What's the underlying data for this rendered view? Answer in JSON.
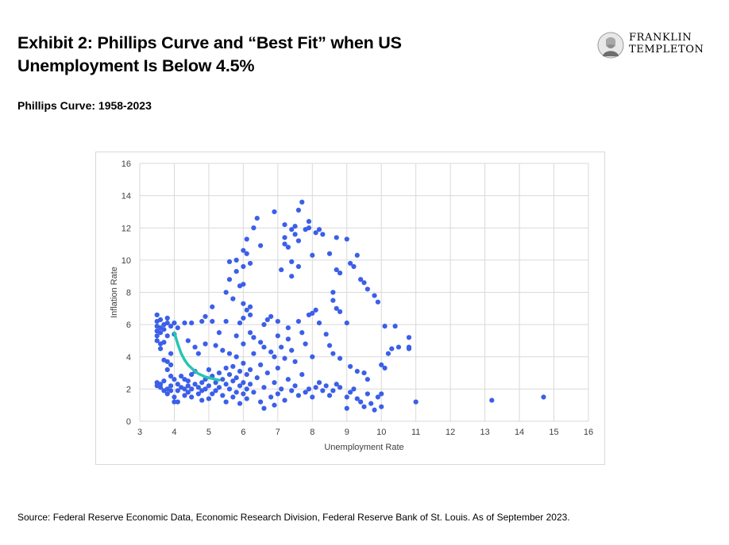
{
  "header": {
    "title": "Exhibit 2: Phillips Curve and “Best Fit” when US Unemployment Is Below 4.5%",
    "subtitle": "Phillips Curve: 1958-2023"
  },
  "logo": {
    "line1": "FRANKLIN",
    "line2": "TEMPLETON",
    "icon": "franklin-portrait-icon"
  },
  "footer": {
    "source": "Source: Federal Reserve Economic Data, Economic Research Division, Federal Reserve Bank of St. Louis. As of September 2023."
  },
  "colors": {
    "points": "#3b5fe8",
    "fit": "#26c6b0",
    "grid": "#d9d9d9"
  },
  "chart_data": {
    "type": "scatter",
    "xlabel": "Unemployment Rate",
    "ylabel": "Inflation Rate",
    "xlim": [
      3,
      16
    ],
    "ylim": [
      0,
      16
    ],
    "xticks": [
      3,
      4,
      5,
      6,
      7,
      8,
      9,
      10,
      11,
      12,
      13,
      14,
      15,
      16
    ],
    "yticks": [
      0,
      2,
      4,
      6,
      8,
      10,
      12,
      14,
      16
    ],
    "grid": true,
    "series": [
      {
        "points": [
          [
            3.5,
            6.6
          ],
          [
            3.5,
            6.2
          ],
          [
            3.5,
            5.9
          ],
          [
            3.5,
            5.6
          ],
          [
            3.5,
            5.3
          ],
          [
            3.5,
            5.0
          ],
          [
            3.6,
            6.3
          ],
          [
            3.6,
            5.8
          ],
          [
            3.6,
            5.5
          ],
          [
            3.6,
            4.8
          ],
          [
            3.6,
            4.5
          ],
          [
            3.7,
            6.0
          ],
          [
            3.7,
            5.7
          ],
          [
            3.7,
            4.9
          ],
          [
            3.8,
            6.4
          ],
          [
            3.8,
            6.1
          ],
          [
            3.8,
            5.3
          ],
          [
            3.9,
            5.9
          ],
          [
            3.9,
            4.2
          ],
          [
            4.0,
            5.4
          ],
          [
            4.0,
            6.1
          ],
          [
            4.1,
            5.8
          ],
          [
            4.3,
            6.1
          ],
          [
            4.4,
            5.0
          ],
          [
            4.5,
            6.1
          ],
          [
            4.8,
            6.2
          ],
          [
            4.9,
            6.5
          ],
          [
            5.1,
            7.1
          ],
          [
            5.1,
            6.2
          ],
          [
            3.5,
            2.4
          ],
          [
            3.5,
            2.2
          ],
          [
            3.6,
            2.1
          ],
          [
            3.6,
            2.3
          ],
          [
            3.7,
            1.9
          ],
          [
            3.7,
            2.5
          ],
          [
            3.7,
            3.8
          ],
          [
            3.8,
            3.7
          ],
          [
            3.8,
            3.2
          ],
          [
            3.8,
            2.0
          ],
          [
            3.8,
            1.7
          ],
          [
            3.9,
            3.5
          ],
          [
            3.9,
            2.8
          ],
          [
            3.9,
            2.2
          ],
          [
            3.9,
            1.9
          ],
          [
            4.0,
            1.5
          ],
          [
            4.0,
            2.6
          ],
          [
            4.0,
            1.2
          ],
          [
            4.1,
            2.3
          ],
          [
            4.1,
            1.9
          ],
          [
            4.1,
            1.2
          ],
          [
            4.2,
            2.1
          ],
          [
            4.2,
            2.8
          ],
          [
            4.3,
            2.6
          ],
          [
            4.3,
            2.0
          ],
          [
            4.3,
            1.6
          ],
          [
            4.4,
            2.5
          ],
          [
            4.4,
            2.2
          ],
          [
            4.4,
            1.8
          ],
          [
            4.5,
            2.0
          ],
          [
            4.5,
            1.5
          ],
          [
            4.5,
            2.9
          ],
          [
            4.6,
            3.1
          ],
          [
            4.6,
            2.3
          ],
          [
            4.6,
            4.6
          ],
          [
            4.7,
            2.1
          ],
          [
            4.7,
            1.7
          ],
          [
            4.7,
            4.2
          ],
          [
            4.8,
            2.4
          ],
          [
            4.8,
            1.9
          ],
          [
            4.8,
            1.3
          ],
          [
            4.9,
            2.6
          ],
          [
            4.9,
            2.0
          ],
          [
            4.9,
            4.8
          ],
          [
            5.0,
            2.2
          ],
          [
            5.0,
            1.4
          ],
          [
            5.0,
            3.2
          ],
          [
            5.1,
            2.8
          ],
          [
            5.1,
            1.7
          ],
          [
            5.2,
            2.4
          ],
          [
            5.2,
            1.9
          ],
          [
            5.2,
            4.7
          ],
          [
            5.3,
            2.1
          ],
          [
            5.3,
            3.0
          ],
          [
            5.3,
            5.5
          ],
          [
            5.4,
            2.6
          ],
          [
            5.4,
            1.6
          ],
          [
            5.4,
            4.4
          ],
          [
            5.5,
            2.3
          ],
          [
            5.5,
            3.3
          ],
          [
            5.5,
            1.2
          ],
          [
            5.5,
            6.2
          ],
          [
            5.6,
            2.9
          ],
          [
            5.6,
            2.0
          ],
          [
            5.6,
            4.2
          ],
          [
            5.7,
            2.5
          ],
          [
            5.7,
            1.5
          ],
          [
            5.7,
            3.4
          ],
          [
            5.8,
            2.7
          ],
          [
            5.8,
            1.8
          ],
          [
            5.8,
            4.0
          ],
          [
            5.8,
            5.3
          ],
          [
            5.9,
            3.1
          ],
          [
            5.9,
            2.2
          ],
          [
            5.9,
            1.1
          ],
          [
            6.0,
            2.4
          ],
          [
            6.0,
            3.6
          ],
          [
            6.0,
            1.7
          ],
          [
            6.0,
            4.8
          ],
          [
            6.1,
            2.0
          ],
          [
            6.1,
            2.9
          ],
          [
            6.1,
            1.4
          ],
          [
            6.2,
            3.2
          ],
          [
            6.2,
            2.3
          ],
          [
            6.3,
            1.8
          ],
          [
            6.3,
            4.2
          ],
          [
            6.4,
            2.7
          ],
          [
            6.5,
            1.2
          ],
          [
            6.5,
            3.5
          ],
          [
            6.6,
            2.1
          ],
          [
            6.6,
            0.8
          ],
          [
            6.7,
            3.0
          ],
          [
            6.8,
            1.5
          ],
          [
            6.9,
            2.4
          ],
          [
            6.9,
            1.0
          ],
          [
            7.0,
            3.3
          ],
          [
            7.0,
            1.7
          ],
          [
            7.1,
            2.0
          ],
          [
            7.2,
            1.3
          ],
          [
            7.3,
            2.6
          ],
          [
            7.4,
            1.9
          ],
          [
            7.5,
            2.2
          ],
          [
            7.6,
            1.6
          ],
          [
            7.7,
            2.9
          ],
          [
            7.8,
            1.8
          ],
          [
            7.9,
            2.0
          ],
          [
            8.0,
            1.5
          ],
          [
            8.1,
            2.1
          ],
          [
            8.2,
            2.4
          ],
          [
            8.3,
            1.9
          ],
          [
            8.4,
            2.2
          ],
          [
            8.5,
            1.6
          ],
          [
            8.6,
            1.9
          ],
          [
            8.7,
            2.3
          ],
          [
            8.8,
            2.1
          ],
          [
            9.0,
            1.5
          ],
          [
            9.0,
            0.8
          ],
          [
            9.1,
            1.8
          ],
          [
            9.2,
            2.0
          ],
          [
            9.3,
            1.4
          ],
          [
            9.4,
            1.2
          ],
          [
            9.5,
            0.9
          ],
          [
            9.6,
            1.7
          ],
          [
            9.7,
            1.1
          ],
          [
            9.8,
            0.7
          ],
          [
            9.9,
            1.5
          ],
          [
            10.0,
            1.7
          ],
          [
            10.0,
            0.9
          ],
          [
            5.5,
            8.0
          ],
          [
            5.6,
            9.9
          ],
          [
            5.6,
            8.8
          ],
          [
            5.7,
            7.6
          ],
          [
            5.8,
            9.3
          ],
          [
            5.8,
            10.0
          ],
          [
            5.9,
            8.4
          ],
          [
            5.9,
            6.1
          ],
          [
            6.0,
            10.6
          ],
          [
            6.0,
            9.6
          ],
          [
            6.0,
            8.5
          ],
          [
            6.0,
            7.3
          ],
          [
            6.0,
            6.4
          ],
          [
            6.1,
            10.4
          ],
          [
            6.1,
            11.3
          ],
          [
            6.1,
            6.9
          ],
          [
            6.2,
            9.8
          ],
          [
            6.2,
            7.1
          ],
          [
            6.2,
            6.6
          ],
          [
            6.3,
            12.0
          ],
          [
            6.4,
            12.6
          ],
          [
            6.5,
            10.9
          ],
          [
            6.6,
            6.0
          ],
          [
            6.7,
            6.3
          ],
          [
            6.8,
            6.5
          ],
          [
            6.9,
            13.0
          ],
          [
            7.0,
            6.2
          ],
          [
            7.1,
            9.4
          ],
          [
            7.2,
            12.2
          ],
          [
            7.2,
            11.4
          ],
          [
            7.2,
            11.0
          ],
          [
            7.3,
            10.8
          ],
          [
            7.4,
            9.9
          ],
          [
            7.4,
            9.0
          ],
          [
            7.4,
            11.9
          ],
          [
            7.5,
            12.1
          ],
          [
            7.5,
            11.6
          ],
          [
            7.6,
            13.1
          ],
          [
            7.6,
            11.2
          ],
          [
            7.6,
            9.6
          ],
          [
            7.7,
            13.6
          ],
          [
            7.8,
            11.9
          ],
          [
            7.9,
            12.4
          ],
          [
            7.9,
            12.0
          ],
          [
            8.0,
            10.3
          ],
          [
            8.0,
            6.7
          ],
          [
            8.1,
            11.7
          ],
          [
            8.2,
            11.9
          ],
          [
            8.3,
            11.6
          ],
          [
            8.5,
            10.4
          ],
          [
            8.6,
            8.0
          ],
          [
            8.7,
            11.4
          ],
          [
            8.7,
            9.4
          ],
          [
            8.8,
            9.2
          ],
          [
            9.0,
            11.3
          ],
          [
            9.1,
            9.8
          ],
          [
            9.2,
            9.6
          ],
          [
            9.3,
            10.3
          ],
          [
            9.4,
            8.8
          ],
          [
            9.5,
            8.6
          ],
          [
            9.6,
            8.2
          ],
          [
            9.8,
            7.8
          ],
          [
            9.9,
            7.4
          ],
          [
            8.6,
            7.5
          ],
          [
            8.7,
            7.0
          ],
          [
            8.8,
            6.8
          ],
          [
            6.2,
            5.5
          ],
          [
            6.3,
            5.2
          ],
          [
            6.5,
            4.9
          ],
          [
            6.6,
            4.6
          ],
          [
            6.8,
            4.3
          ],
          [
            6.9,
            4.0
          ],
          [
            7.0,
            5.3
          ],
          [
            7.1,
            4.6
          ],
          [
            7.2,
            3.9
          ],
          [
            7.3,
            5.8
          ],
          [
            7.3,
            5.1
          ],
          [
            7.4,
            4.4
          ],
          [
            7.5,
            3.7
          ],
          [
            7.6,
            6.2
          ],
          [
            7.7,
            5.5
          ],
          [
            7.8,
            4.8
          ],
          [
            7.9,
            6.6
          ],
          [
            8.0,
            4.0
          ],
          [
            8.1,
            6.9
          ],
          [
            8.2,
            6.1
          ],
          [
            8.4,
            5.4
          ],
          [
            8.5,
            4.7
          ],
          [
            8.6,
            4.2
          ],
          [
            8.8,
            3.9
          ],
          [
            9.0,
            6.1
          ],
          [
            9.1,
            3.4
          ],
          [
            9.3,
            3.1
          ],
          [
            9.5,
            3.0
          ],
          [
            9.6,
            2.6
          ],
          [
            10.0,
            3.5
          ],
          [
            10.1,
            3.3
          ],
          [
            10.2,
            4.2
          ],
          [
            10.3,
            4.5
          ],
          [
            10.4,
            5.9
          ],
          [
            10.5,
            4.6
          ],
          [
            10.8,
            4.5
          ],
          [
            10.8,
            5.2
          ],
          [
            10.1,
            5.9
          ],
          [
            10.8,
            4.6
          ],
          [
            11.0,
            1.2
          ],
          [
            13.2,
            1.3
          ],
          [
            14.7,
            1.5
          ]
        ]
      }
    ],
    "fit_curve": {
      "x": [
        4.0,
        4.1,
        4.2,
        4.3,
        4.4,
        4.5,
        4.6,
        4.7,
        4.8,
        4.9,
        5.0,
        5.1,
        5.2,
        5.3
      ],
      "y": [
        5.5,
        4.8,
        4.2,
        3.8,
        3.5,
        3.3,
        3.1,
        2.95,
        2.85,
        2.75,
        2.7,
        2.65,
        2.6,
        2.55
      ]
    }
  }
}
